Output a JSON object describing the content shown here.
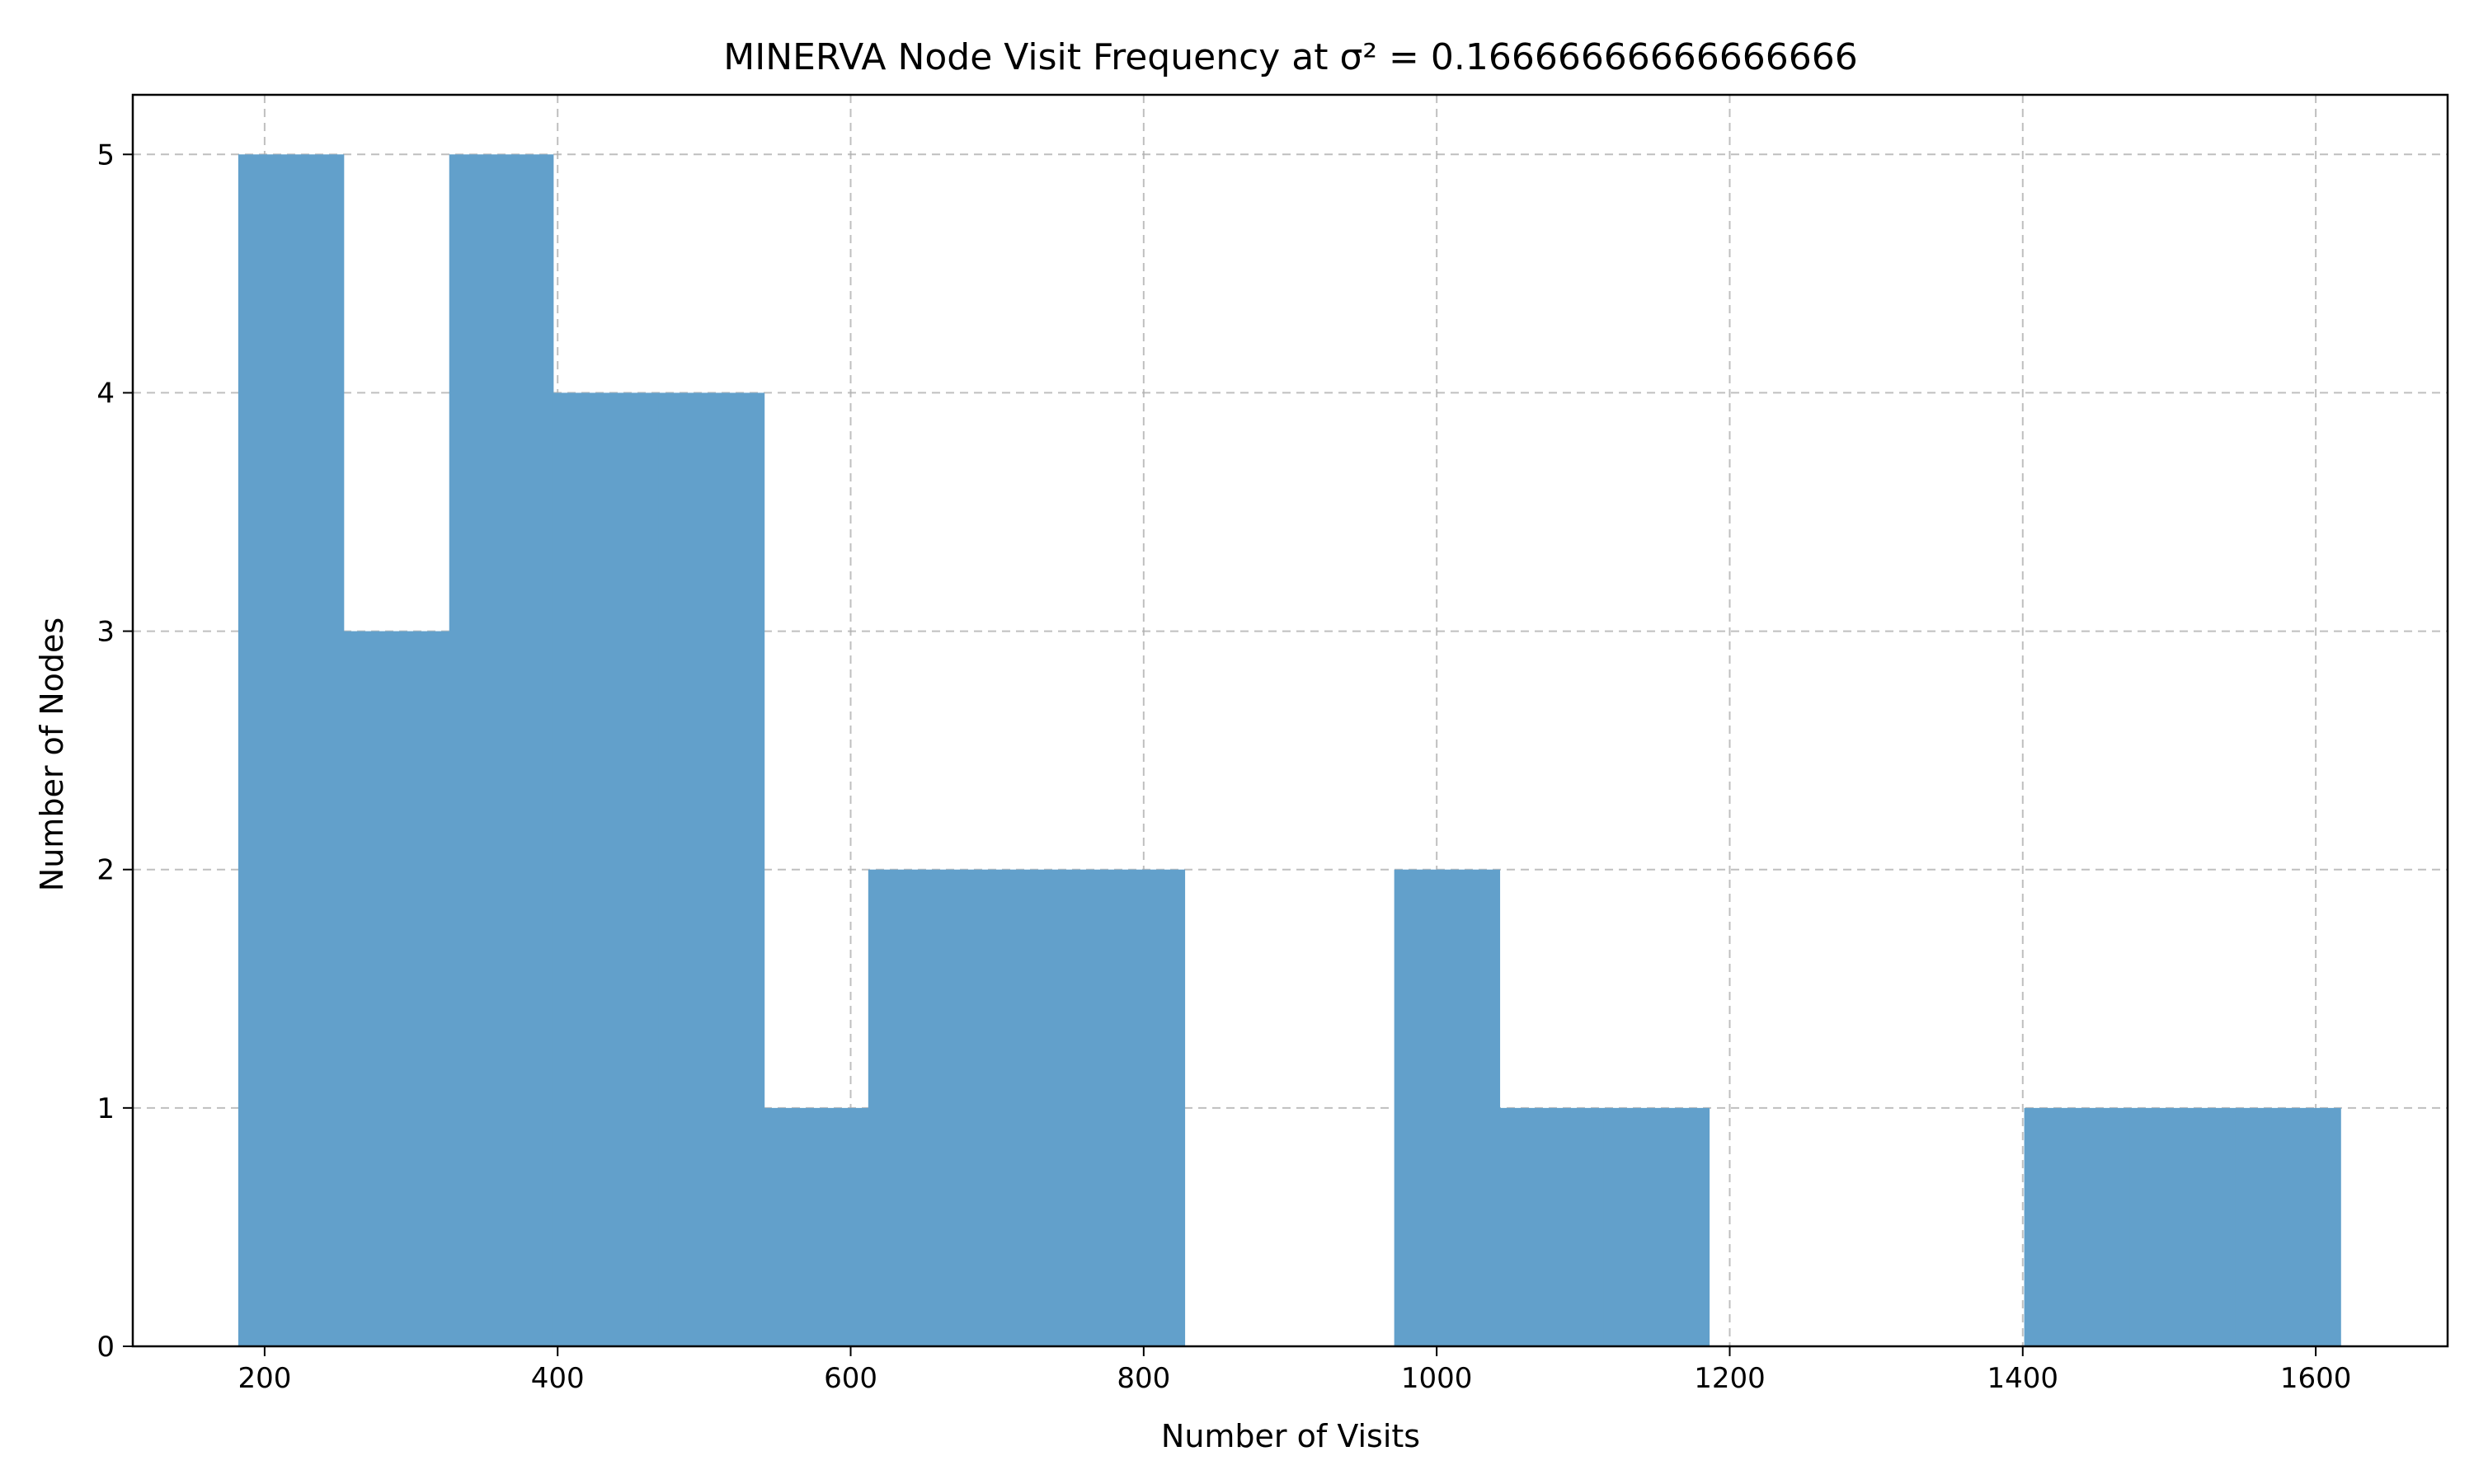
{
  "chart_data": {
    "type": "bar",
    "title": "MINERVA Node Visit Frequency at σ² = 0.16666666666666666",
    "xlabel": "Number of Visits",
    "ylabel": "Number of Nodes",
    "xlim": [
      110,
      1690
    ],
    "ylim": [
      0,
      5.25
    ],
    "xticks": [
      200,
      400,
      600,
      800,
      1000,
      1200,
      1400,
      1600
    ],
    "yticks": [
      0,
      1,
      2,
      3,
      4,
      5
    ],
    "grid": true,
    "bar_color": "#62a0cb",
    "bins": [
      {
        "x0": 182,
        "x1": 254,
        "count": 5
      },
      {
        "x0": 254,
        "x1": 326,
        "count": 3
      },
      {
        "x0": 326,
        "x1": 397,
        "count": 5
      },
      {
        "x0": 397,
        "x1": 469,
        "count": 4
      },
      {
        "x0": 469,
        "x1": 541,
        "count": 4
      },
      {
        "x0": 541,
        "x1": 612,
        "count": 1
      },
      {
        "x0": 612,
        "x1": 684,
        "count": 2
      },
      {
        "x0": 684,
        "x1": 756,
        "count": 2
      },
      {
        "x0": 756,
        "x1": 828,
        "count": 2
      },
      {
        "x0": 828,
        "x1": 899,
        "count": 0
      },
      {
        "x0": 899,
        "x1": 971,
        "count": 0
      },
      {
        "x0": 971,
        "x1": 1043,
        "count": 2
      },
      {
        "x0": 1043,
        "x1": 1114,
        "count": 1
      },
      {
        "x0": 1114,
        "x1": 1186,
        "count": 1
      },
      {
        "x0": 1186,
        "x1": 1258,
        "count": 0
      },
      {
        "x0": 1258,
        "x1": 1330,
        "count": 0
      },
      {
        "x0": 1330,
        "x1": 1401,
        "count": 0
      },
      {
        "x0": 1401,
        "x1": 1473,
        "count": 1
      },
      {
        "x0": 1473,
        "x1": 1545,
        "count": 1
      },
      {
        "x0": 1545,
        "x1": 1617,
        "count": 1
      }
    ]
  }
}
